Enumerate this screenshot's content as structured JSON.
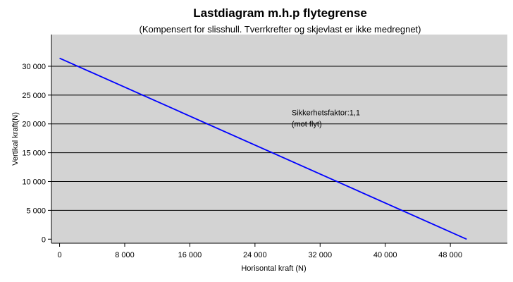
{
  "chart_data": {
    "type": "line",
    "title": "Lastdiagram m.h.p flytegrense",
    "subtitle": "(Kompensert for slisshull. Tverrkrefter og skjevlast er ikke medregnet)",
    "xlabel": "Horisontal kraft (N)",
    "ylabel": "Vertikal kraft(N)",
    "xlim": [
      -1000,
      55000
    ],
    "ylim": [
      -700,
      35500
    ],
    "x_ticks": [
      0,
      8000,
      16000,
      24000,
      32000,
      40000,
      48000
    ],
    "x_tick_labels": [
      "0",
      "8 000",
      "16 000",
      "24 000",
      "32 000",
      "40 000",
      "48 000"
    ],
    "y_ticks": [
      0,
      5000,
      10000,
      15000,
      20000,
      25000,
      30000
    ],
    "y_tick_labels": [
      "0",
      "5 000",
      "10 000",
      "15 000",
      "20 000",
      "25 000",
      "30 000"
    ],
    "grid": "horizontal",
    "plot_background": "#d3d3d3",
    "series": [
      {
        "color": "#0000ff",
        "x": [
          0,
          50000
        ],
        "y": [
          31400,
          0
        ]
      }
    ],
    "annotation": {
      "lines": [
        "Sikkerhetsfaktor:1,1",
        "(mot flyt)"
      ],
      "x": 28500,
      "y": 21500
    }
  }
}
